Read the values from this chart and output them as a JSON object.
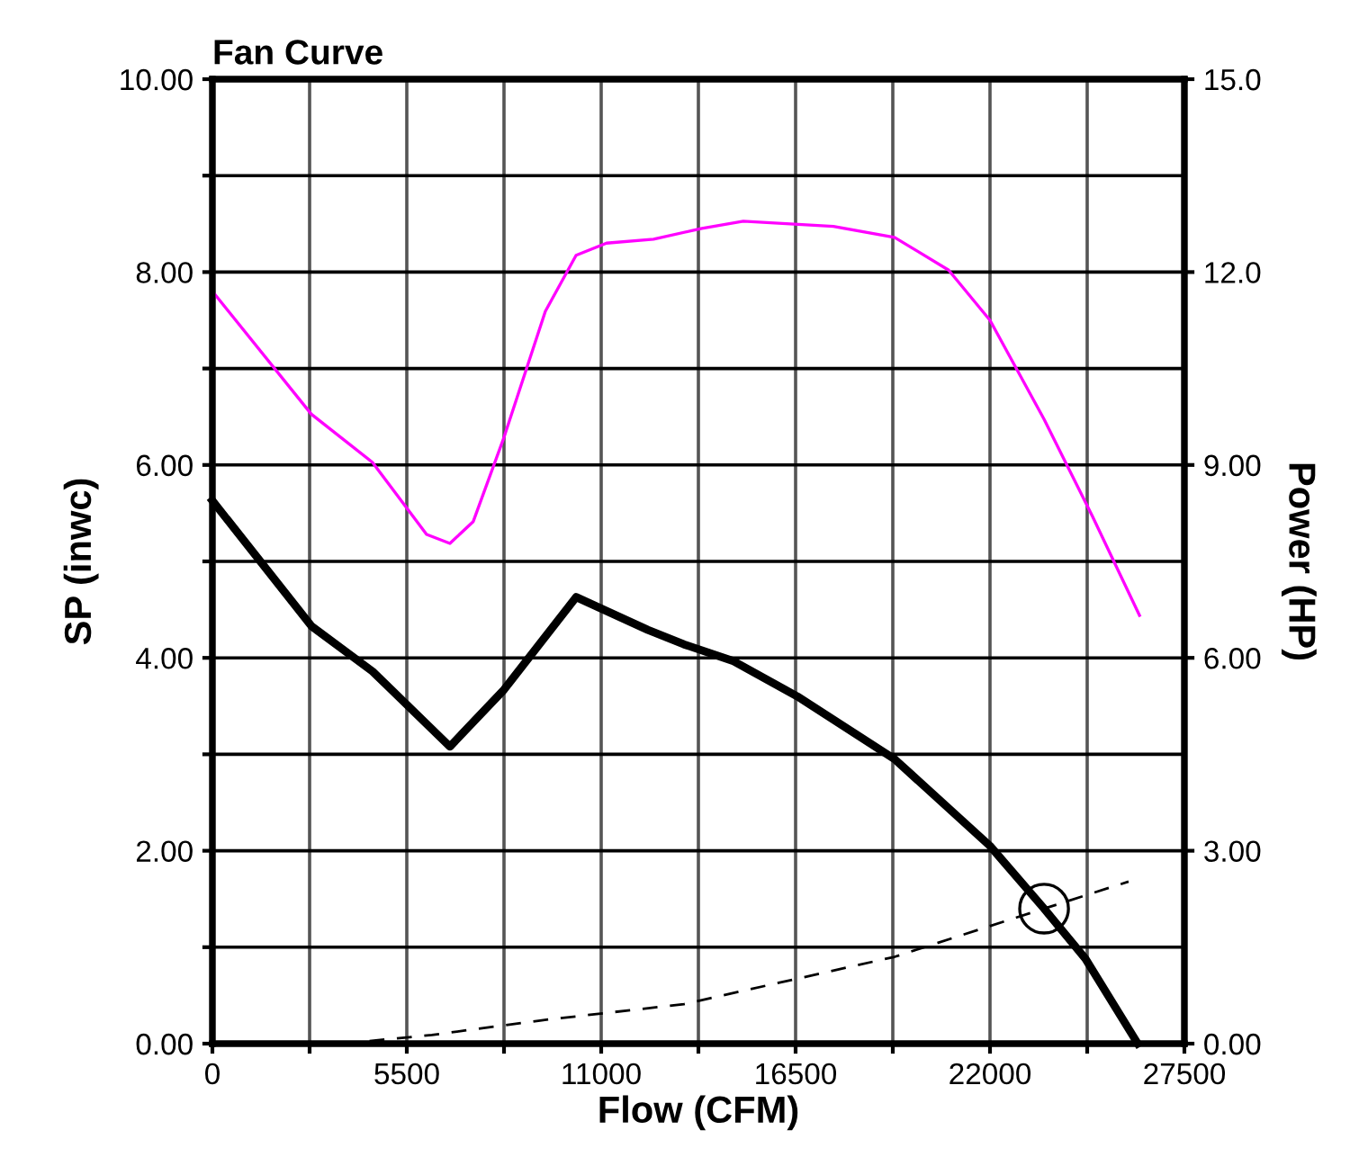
{
  "chart_data": {
    "type": "line",
    "title": "Fan Curve",
    "xlabel": "Flow (CFM)",
    "ylabel": "SP (inwc)",
    "y2label": "Power (HP)",
    "xlim": [
      0,
      27500
    ],
    "ylim": [
      0,
      10
    ],
    "y2lim": [
      0,
      15
    ],
    "xticks": [
      0,
      {
        "value": 2750,
        "label": null
      },
      5500,
      {
        "value": 8250,
        "label": null
      },
      11000,
      {
        "value": 13750,
        "label": null
      },
      16500,
      {
        "value": 19250,
        "label": null
      },
      22000,
      {
        "value": 24750,
        "label": null
      },
      27500
    ],
    "yticks": [
      {
        "value": 0,
        "label": "0.00"
      },
      {
        "value": 1,
        "label": null
      },
      {
        "value": 2,
        "label": "2.00"
      },
      {
        "value": 3,
        "label": null
      },
      {
        "value": 4,
        "label": "4.00"
      },
      {
        "value": 5,
        "label": null
      },
      {
        "value": 6,
        "label": "6.00"
      },
      {
        "value": 7,
        "label": null
      },
      {
        "value": 8,
        "label": "8.00"
      },
      {
        "value": 9,
        "label": null
      },
      {
        "value": 10,
        "label": "10.00"
      }
    ],
    "y2ticks": [
      {
        "value": 0,
        "label": "0.00"
      },
      {
        "value": 3,
        "label": "3.00"
      },
      {
        "value": 6,
        "label": "6.00"
      },
      {
        "value": 9,
        "label": "9.00"
      },
      {
        "value": 12,
        "label": "12.0"
      },
      {
        "value": 15,
        "label": "15.0"
      }
    ],
    "grid": true,
    "series": [
      {
        "color": "#000000",
        "line_style": "solid",
        "x": [
          0,
          2800,
          4530,
          6720,
          8250,
          10290,
          12320,
          13340,
          14720,
          16550,
          19300,
          22000,
          23530,
          24700,
          26180
        ],
        "values": [
          5.63,
          4.33,
          3.86,
          3.08,
          3.67,
          4.63,
          4.29,
          4.14,
          3.97,
          3.6,
          2.95,
          2.05,
          1.4,
          0.88,
          0
        ]
      },
      {
        "color": "#ff00ff",
        "axis": "y2",
        "line_style": "solid",
        "x": [
          0,
          2800,
          4530,
          6060,
          6720,
          7380,
          8250,
          9420,
          10290,
          11150,
          12480,
          13850,
          15020,
          17570,
          19300,
          20830,
          22000,
          23530,
          24900,
          26230
        ],
        "values": [
          11.7,
          9.79,
          9.04,
          7.92,
          7.78,
          8.12,
          9.43,
          11.39,
          12.26,
          12.45,
          12.51,
          12.68,
          12.79,
          12.71,
          12.54,
          12.03,
          11.25,
          9.71,
          8.2,
          6.66
        ]
      },
      {
        "color": "#000000",
        "line_style": "dashed",
        "x": [
          3670,
          6210,
          9270,
          13340,
          19300,
          23530,
          25920
        ],
        "values": [
          0,
          0.09,
          0.24,
          0.41,
          0.9,
          1.4,
          1.68
        ]
      },
      {
        "type": "scatter",
        "color": "#000000",
        "marker": "circle",
        "x": [
          23530
        ],
        "values": [
          1.4
        ]
      }
    ]
  }
}
